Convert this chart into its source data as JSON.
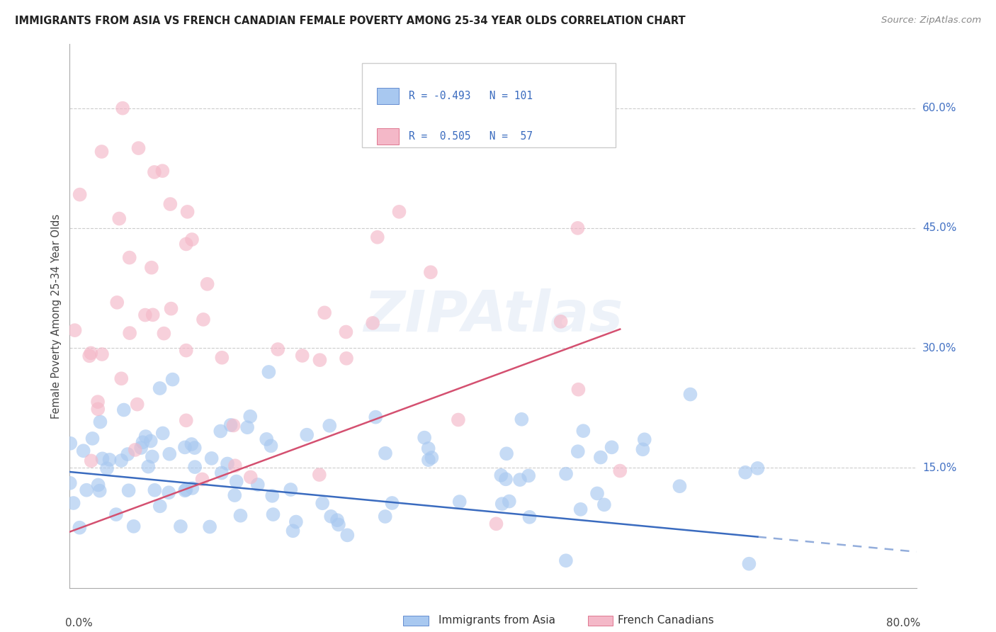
{
  "title": "IMMIGRANTS FROM ASIA VS FRENCH CANADIAN FEMALE POVERTY AMONG 25-34 YEAR OLDS CORRELATION CHART",
  "source": "Source: ZipAtlas.com",
  "ylabel": "Female Poverty Among 25-34 Year Olds",
  "watermark": "ZIPAtlas",
  "xlim": [
    0.0,
    0.8
  ],
  "ylim": [
    0.0,
    0.68
  ],
  "ytick_vals": [
    0.15,
    0.3,
    0.45,
    0.6
  ],
  "ytick_labels": [
    "15.0%",
    "30.0%",
    "45.0%",
    "60.0%"
  ],
  "color_blue_fill": "#a8c8f0",
  "color_pink_fill": "#f4b8c8",
  "color_blue_line": "#3a6bbf",
  "color_pink_line": "#d45070",
  "color_ytick": "#4472c4",
  "legend_text_color": "#3a6bbf",
  "legend_R1": "-0.493",
  "legend_N1": "101",
  "legend_R2": "0.505",
  "legend_N2": "57",
  "blue_trend_start_x": 0.0,
  "blue_trend_start_y": 0.145,
  "blue_trend_end_x": 0.8,
  "blue_trend_end_y": 0.045,
  "pink_trend_start_x": 0.0,
  "pink_trend_start_y": 0.07,
  "pink_trend_end_x": 0.8,
  "pink_trend_end_y": 0.46
}
